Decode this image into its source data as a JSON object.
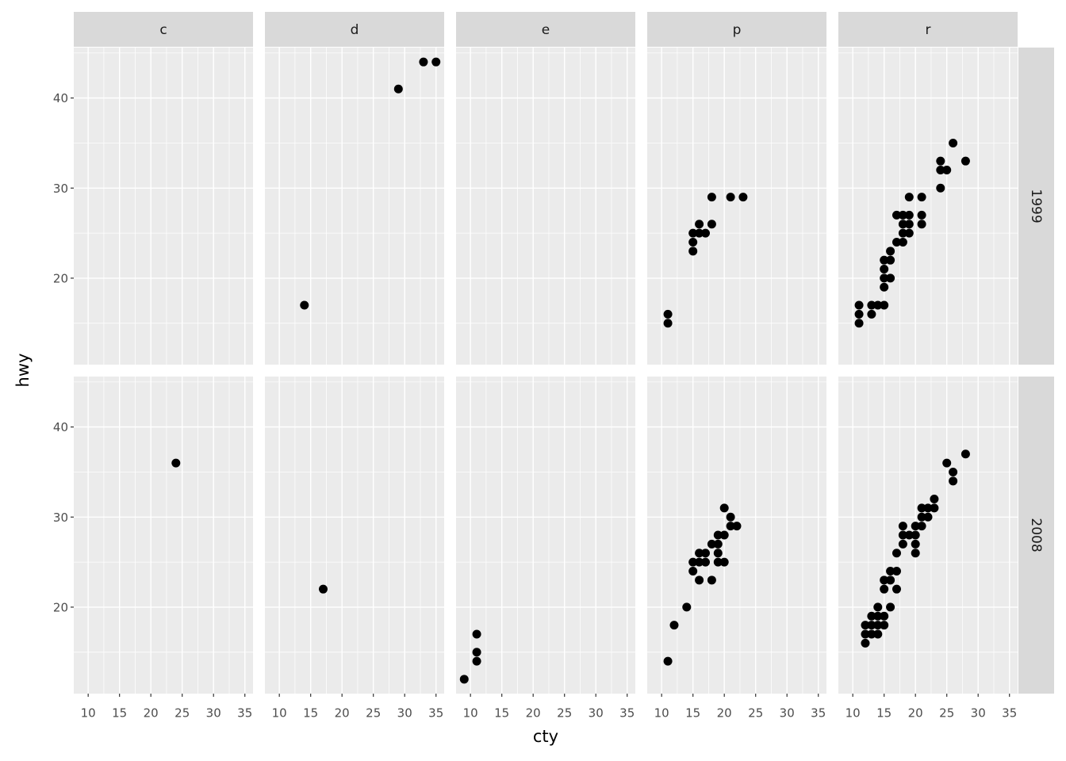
{
  "chart_data": {
    "type": "scatter",
    "x_label": "cty",
    "y_label": "hwy",
    "columns": [
      "c",
      "d",
      "e",
      "p",
      "r"
    ],
    "rows": [
      "1999",
      "2008"
    ],
    "xlim": [
      7.7,
      36.3
    ],
    "ylim": [
      10.4,
      45.6
    ],
    "xticks": [
      10,
      15,
      20,
      25,
      30,
      35
    ],
    "yticks": [
      20,
      30,
      40
    ],
    "xminor": [
      12.5,
      17.5,
      22.5,
      27.5,
      32.5
    ],
    "yminor": [
      15,
      25,
      35,
      45
    ],
    "grid": true,
    "color": "#000000",
    "panels": [
      [
        {
          "x": [],
          "y": []
        },
        {
          "x": [
            14,
            29,
            33,
            35
          ],
          "y": [
            17,
            41,
            44,
            44
          ]
        },
        {
          "x": [],
          "y": []
        },
        {
          "x": [
            11,
            11,
            15,
            15,
            15,
            16,
            16,
            17,
            18,
            18,
            21,
            23
          ],
          "y": [
            15,
            16,
            23,
            24,
            25,
            26,
            25,
            25,
            26,
            29,
            29,
            29
          ]
        },
        {
          "x": [
            11,
            11,
            11,
            13,
            13,
            14,
            15,
            15,
            15,
            15,
            15,
            16,
            16,
            16,
            17,
            17,
            18,
            18,
            18,
            18,
            19,
            19,
            19,
            19,
            21,
            21,
            21,
            24,
            24,
            24,
            25,
            26,
            28
          ],
          "y": [
            17,
            16,
            15,
            17,
            16,
            17,
            17,
            19,
            20,
            21,
            22,
            22,
            23,
            20,
            24,
            27,
            24,
            25,
            26,
            27,
            25,
            26,
            27,
            29,
            26,
            27,
            29,
            30,
            32,
            33,
            32,
            35,
            33
          ]
        }
      ],
      [
        {
          "x": [
            24
          ],
          "y": [
            36
          ]
        },
        {
          "x": [
            17
          ],
          "y": [
            22
          ]
        },
        {
          "x": [
            9,
            11,
            11,
            11
          ],
          "y": [
            12,
            17,
            15,
            14
          ]
        },
        {
          "x": [
            11,
            12,
            14,
            15,
            15,
            16,
            16,
            16,
            17,
            17,
            18,
            18,
            19,
            19,
            19,
            19,
            20,
            20,
            20,
            21,
            21,
            22
          ],
          "y": [
            14,
            18,
            20,
            24,
            25,
            23,
            25,
            26,
            26,
            25,
            27,
            23,
            28,
            27,
            26,
            25,
            31,
            28,
            25,
            30,
            29,
            29
          ]
        },
        {
          "x": [
            12,
            12,
            12,
            13,
            13,
            13,
            14,
            14,
            14,
            14,
            15,
            15,
            15,
            15,
            16,
            16,
            16,
            17,
            17,
            17,
            18,
            18,
            18,
            19,
            20,
            20,
            20,
            20,
            21,
            21,
            21,
            22,
            22,
            23,
            23,
            25,
            26,
            26,
            28
          ],
          "y": [
            16,
            17,
            18,
            19,
            18,
            17,
            20,
            19,
            18,
            17,
            19,
            18,
            22,
            23,
            20,
            23,
            24,
            22,
            24,
            26,
            27,
            28,
            29,
            28,
            26,
            27,
            28,
            29,
            29,
            30,
            31,
            30,
            31,
            31,
            32,
            36,
            35,
            34,
            37
          ]
        }
      ]
    ]
  }
}
